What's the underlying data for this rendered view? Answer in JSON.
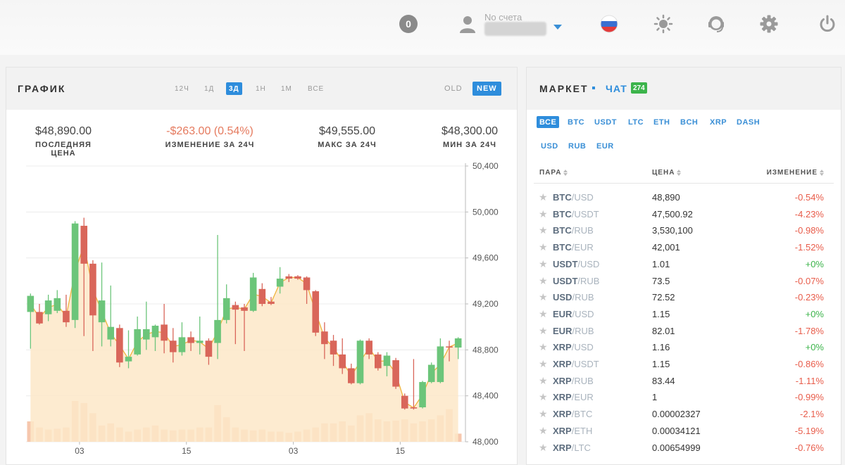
{
  "topbar": {
    "notifications_count": "0",
    "account_label": "No счета",
    "icons": [
      "user-icon",
      "flag-ru-icon",
      "theme-sun-icon",
      "support-icon",
      "settings-gear-icon",
      "power-icon"
    ]
  },
  "chart_panel": {
    "title": "ГРАФИК",
    "timeframes": [
      "12Ч",
      "1Д",
      "3Д",
      "1Н",
      "1М",
      "ВСЕ"
    ],
    "active_timeframe": "3Д",
    "versions": [
      "OLD",
      "NEW"
    ],
    "active_version": "NEW",
    "stats": [
      {
        "value": "$48,890.00",
        "label": "ПОСЛЕДНЯЯ ЦЕНА"
      },
      {
        "value": "-$263.00 (0.54%)",
        "label": "ИЗМЕНЕНИЕ ЗА 24Ч"
      },
      {
        "value": "$49,555.00",
        "label": "МАКС ЗА 24Ч"
      },
      {
        "value": "$48,300.00",
        "label": "МИН ЗА 24Ч"
      }
    ]
  },
  "chart_data": {
    "type": "candlestick",
    "y_ticks": [
      "50,400",
      "50,000",
      "49,600",
      "49,200",
      "48,800",
      "48,400",
      "48,000"
    ],
    "ylim": [
      48000,
      50400
    ],
    "x_ticks": [
      {
        "label": "03",
        "index": 5.5
      },
      {
        "label": "15",
        "index": 17.5
      },
      {
        "label": "03",
        "index": 29.5
      },
      {
        "label": "15",
        "index": 41.5
      }
    ],
    "colors": {
      "up": "#6cc57a",
      "down": "#d9665a",
      "line": "#f0b43c",
      "area": "#fde8c8",
      "volume": "#f6c7ad"
    },
    "candles": [
      {
        "o": 49130,
        "c": 49270,
        "h": 49290,
        "l": 48810
      },
      {
        "o": 49130,
        "c": 49030,
        "h": 49200,
        "l": 49020
      },
      {
        "o": 49110,
        "c": 49230,
        "h": 49280,
        "l": 49050
      },
      {
        "o": 49140,
        "c": 49250,
        "h": 49320,
        "l": 49120
      },
      {
        "o": 49140,
        "c": 49040,
        "h": 49280,
        "l": 49000
      },
      {
        "o": 49060,
        "c": 49900,
        "h": 49920,
        "l": 48990
      },
      {
        "o": 49880,
        "c": 49550,
        "h": 49950,
        "l": 48920
      },
      {
        "o": 49550,
        "c": 49100,
        "h": 49580,
        "l": 48790
      },
      {
        "o": 49040,
        "c": 49230,
        "h": 49560,
        "l": 48830
      },
      {
        "o": 48890,
        "c": 49000,
        "h": 49360,
        "l": 48830
      },
      {
        "o": 48990,
        "c": 48690,
        "h": 49020,
        "l": 48650
      },
      {
        "o": 48700,
        "c": 48740,
        "h": 48970,
        "l": 48640
      },
      {
        "o": 48760,
        "c": 48980,
        "h": 49090,
        "l": 48750
      },
      {
        "o": 48890,
        "c": 48980,
        "h": 49220,
        "l": 48800
      },
      {
        "o": 48910,
        "c": 49010,
        "h": 49020,
        "l": 48790
      },
      {
        "o": 49020,
        "c": 48880,
        "h": 49200,
        "l": 48770
      },
      {
        "o": 48880,
        "c": 48780,
        "h": 48990,
        "l": 48690
      },
      {
        "o": 48780,
        "c": 48910,
        "h": 49040,
        "l": 48750
      },
      {
        "o": 48910,
        "c": 48860,
        "h": 48960,
        "l": 48790
      },
      {
        "o": 48860,
        "c": 48880,
        "h": 49090,
        "l": 48760
      },
      {
        "o": 48880,
        "c": 48740,
        "h": 48900,
        "l": 48670
      },
      {
        "o": 48860,
        "c": 49060,
        "h": 49800,
        "l": 48720
      },
      {
        "o": 49060,
        "c": 49250,
        "h": 49370,
        "l": 49030
      },
      {
        "o": 49190,
        "c": 49150,
        "h": 49220,
        "l": 48850
      },
      {
        "o": 49170,
        "c": 49140,
        "h": 49200,
        "l": 48790
      },
      {
        "o": 49140,
        "c": 49430,
        "h": 49470,
        "l": 49130
      },
      {
        "o": 49330,
        "c": 49200,
        "h": 49380,
        "l": 49180
      },
      {
        "o": 49220,
        "c": 49200,
        "h": 49260,
        "l": 49190
      },
      {
        "o": 49350,
        "c": 49420,
        "h": 49520,
        "l": 49290
      },
      {
        "o": 49440,
        "c": 49420,
        "h": 49460,
        "l": 49390
      },
      {
        "o": 49440,
        "c": 49420,
        "h": 49450,
        "l": 49410
      },
      {
        "o": 49430,
        "c": 49320,
        "h": 49440,
        "l": 49200
      },
      {
        "o": 49310,
        "c": 48950,
        "h": 49320,
        "l": 48920
      },
      {
        "o": 48960,
        "c": 48850,
        "h": 49040,
        "l": 48720
      },
      {
        "o": 48880,
        "c": 48760,
        "h": 48930,
        "l": 48660
      },
      {
        "o": 48760,
        "c": 48640,
        "h": 48900,
        "l": 48590
      },
      {
        "o": 48640,
        "c": 48510,
        "h": 48680,
        "l": 48500
      },
      {
        "o": 48510,
        "c": 48880,
        "h": 48890,
        "l": 48500
      },
      {
        "o": 48880,
        "c": 48760,
        "h": 48900,
        "l": 48720
      },
      {
        "o": 48760,
        "c": 48640,
        "h": 48780,
        "l": 48620
      },
      {
        "o": 48660,
        "c": 48750,
        "h": 48780,
        "l": 48570
      },
      {
        "o": 48710,
        "c": 48480,
        "h": 48730,
        "l": 48460
      },
      {
        "o": 48400,
        "c": 48290,
        "h": 48420,
        "l": 48280
      },
      {
        "o": 48300,
        "c": 48290,
        "h": 48720,
        "l": 48280
      },
      {
        "o": 48300,
        "c": 48520,
        "h": 48530,
        "l": 48290
      },
      {
        "o": 48520,
        "c": 48670,
        "h": 48690,
        "l": 48510
      },
      {
        "o": 48520,
        "c": 48830,
        "h": 48900,
        "l": 48510
      },
      {
        "o": 48830,
        "c": 48820,
        "h": 48880,
        "l": 48700
      },
      {
        "o": 48820,
        "c": 48900,
        "h": 48910,
        "l": 48720
      }
    ],
    "volumes": [
      0.5,
      0.35,
      0.3,
      0.32,
      0.35,
      1.0,
      0.95,
      0.7,
      0.4,
      0.45,
      0.35,
      0.25,
      0.3,
      0.35,
      0.4,
      0.3,
      0.28,
      0.3,
      0.3,
      0.35,
      0.35,
      0.9,
      0.6,
      0.35,
      0.3,
      0.28,
      0.3,
      0.25,
      0.25,
      0.22,
      0.25,
      0.3,
      0.35,
      0.45,
      0.45,
      0.5,
      0.4,
      0.65,
      0.7,
      0.55,
      0.5,
      0.52,
      0.55,
      0.45,
      0.5,
      0.55,
      0.65,
      0.8,
      0.2
    ]
  },
  "market": {
    "title": "МАРКЕТ",
    "chat_label": "ЧАТ",
    "chat_count": "274",
    "filters": [
      "ВСЕ",
      "BTC",
      "USDT",
      "LTC",
      "ETH",
      "BCH",
      "XRP",
      "DASH",
      "USD",
      "RUB",
      "EUR"
    ],
    "active_filter": "ВСЕ",
    "headers": {
      "pair": "ПАРА",
      "price": "ЦЕНА",
      "change": "ИЗМЕНЕНИЕ"
    },
    "rows": [
      {
        "base": "BTC",
        "quote": "/USD",
        "price": "48,890",
        "change": "-0.54%",
        "dir": "neg"
      },
      {
        "base": "BTC",
        "quote": "/USDT",
        "price": "47,500.92",
        "change": "-4.23%",
        "dir": "neg"
      },
      {
        "base": "BTC",
        "quote": "/RUB",
        "price": "3,530,100",
        "change": "-0.98%",
        "dir": "neg"
      },
      {
        "base": "BTC",
        "quote": "/EUR",
        "price": "42,001",
        "change": "-1.52%",
        "dir": "neg"
      },
      {
        "base": "USDT",
        "quote": "/USD",
        "price": "1.01",
        "change": "+0%",
        "dir": "pos"
      },
      {
        "base": "USDT",
        "quote": "/RUB",
        "price": "73.5",
        "change": "-0.07%",
        "dir": "neg"
      },
      {
        "base": "USD",
        "quote": "/RUB",
        "price": "72.52",
        "change": "-0.23%",
        "dir": "neg"
      },
      {
        "base": "EUR",
        "quote": "/USD",
        "price": "1.15",
        "change": "+0%",
        "dir": "pos"
      },
      {
        "base": "EUR",
        "quote": "/RUB",
        "price": "82.01",
        "change": "-1.78%",
        "dir": "neg"
      },
      {
        "base": "XRP",
        "quote": "/USD",
        "price": "1.16",
        "change": "+0%",
        "dir": "pos"
      },
      {
        "base": "XRP",
        "quote": "/USDT",
        "price": "1.15",
        "change": "-0.86%",
        "dir": "neg"
      },
      {
        "base": "XRP",
        "quote": "/RUB",
        "price": "83.44",
        "change": "-1.11%",
        "dir": "neg"
      },
      {
        "base": "XRP",
        "quote": "/EUR",
        "price": "1",
        "change": "-0.99%",
        "dir": "neg"
      },
      {
        "base": "XRP",
        "quote": "/BTC",
        "price": "0.00002327",
        "change": "-2.1%",
        "dir": "neg"
      },
      {
        "base": "XRP",
        "quote": "/ETH",
        "price": "0.00034121",
        "change": "-5.19%",
        "dir": "neg"
      },
      {
        "base": "XRP",
        "quote": "/LTC",
        "price": "0.00654999",
        "change": "-0.76%",
        "dir": "neg"
      }
    ]
  }
}
